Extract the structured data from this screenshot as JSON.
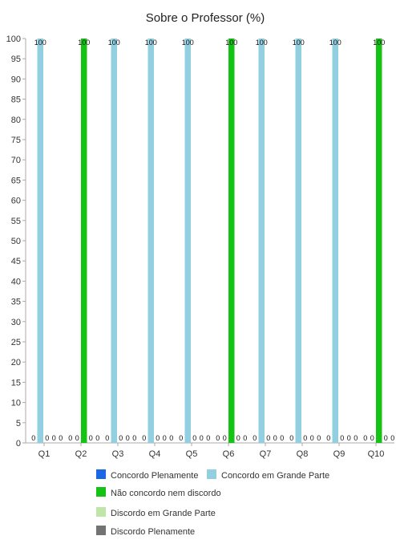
{
  "chart_data": {
    "type": "bar",
    "title": "Sobre o Professor (%)",
    "xlabel": "",
    "ylabel": "",
    "ylim": [
      0,
      100
    ],
    "ytick_step": 5,
    "categories": [
      "Q1",
      "Q2",
      "Q3",
      "Q4",
      "Q5",
      "Q6",
      "Q7",
      "Q8",
      "Q9",
      "Q10"
    ],
    "series": [
      {
        "name": "Concordo Plenamente",
        "color": "#1a66e6",
        "values": [
          0,
          0,
          0,
          0,
          0,
          0,
          0,
          0,
          0,
          0
        ]
      },
      {
        "name": "Concordo em Grande Parte",
        "color": "#92cfe0",
        "values": [
          100,
          0,
          100,
          100,
          100,
          0,
          100,
          100,
          100,
          0
        ]
      },
      {
        "name": "Não concordo nem discordo",
        "color": "#15c315",
        "values": [
          0,
          100,
          0,
          0,
          0,
          100,
          0,
          0,
          0,
          100
        ]
      },
      {
        "name": "Discordo em Grande Parte",
        "color": "#bfe6a8",
        "values": [
          0,
          0,
          0,
          0,
          0,
          0,
          0,
          0,
          0,
          0
        ]
      },
      {
        "name": "Discordo Plenamente",
        "color": "#737373",
        "values": [
          0,
          0,
          0,
          0,
          0,
          0,
          0,
          0,
          0,
          0
        ]
      }
    ],
    "legend_position": "bottom",
    "grid": false
  }
}
